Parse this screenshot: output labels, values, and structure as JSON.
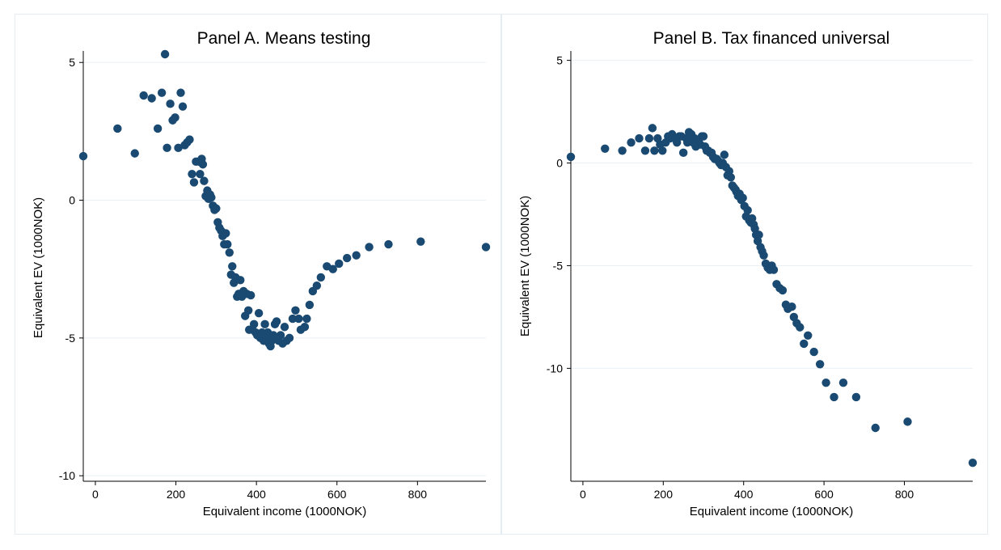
{
  "figure": {
    "background": "#ffffff",
    "border_color": "#e6edf2",
    "marker_color": "#1a4a72"
  },
  "chart_data": [
    {
      "type": "scatter",
      "title": "Panel A. Means testing",
      "xlabel": "Equivalent income (1000NOK)",
      "ylabel": "Equivalent EV (1000NOK)",
      "xlim": [
        -30,
        970
      ],
      "ylim": [
        -10.2,
        5.3
      ],
      "xticks": [
        0,
        200,
        400,
        600,
        800
      ],
      "yticks": [
        5,
        0,
        -5,
        -10
      ],
      "grid": true,
      "points": [
        [
          -30,
          1.6
        ],
        [
          55,
          2.6
        ],
        [
          98,
          1.7
        ],
        [
          120,
          3.8
        ],
        [
          140,
          3.7
        ],
        [
          155,
          2.6
        ],
        [
          165,
          3.9
        ],
        [
          173,
          5.3
        ],
        [
          178,
          1.9
        ],
        [
          186,
          3.5
        ],
        [
          192,
          2.9
        ],
        [
          198,
          3.0
        ],
        [
          206,
          1.9
        ],
        [
          212,
          3.9
        ],
        [
          217,
          3.4
        ],
        [
          222,
          2.0
        ],
        [
          228,
          2.1
        ],
        [
          234,
          2.2
        ],
        [
          240,
          0.95
        ],
        [
          245,
          0.65
        ],
        [
          250,
          1.4
        ],
        [
          257,
          1.4
        ],
        [
          260,
          0.95
        ],
        [
          264,
          1.5
        ],
        [
          267,
          1.3
        ],
        [
          270,
          0.7
        ],
        [
          274,
          0.15
        ],
        [
          278,
          0.35
        ],
        [
          281,
          0.05
        ],
        [
          285,
          0.2
        ],
        [
          288,
          0.1
        ],
        [
          292,
          -0.2
        ],
        [
          296,
          -0.35
        ],
        [
          300,
          -0.3
        ],
        [
          304,
          -0.8
        ],
        [
          308,
          -1.0
        ],
        [
          312,
          -1.1
        ],
        [
          316,
          -1.3
        ],
        [
          320,
          -1.6
        ],
        [
          324,
          -1.2
        ],
        [
          328,
          -1.6
        ],
        [
          333,
          -1.9
        ],
        [
          337,
          -2.7
        ],
        [
          340,
          -2.4
        ],
        [
          344,
          -3.0
        ],
        [
          348,
          -2.8
        ],
        [
          352,
          -3.5
        ],
        [
          356,
          -3.4
        ],
        [
          360,
          -2.9
        ],
        [
          364,
          -3.5
        ],
        [
          368,
          -3.3
        ],
        [
          372,
          -4.2
        ],
        [
          376,
          -3.4
        ],
        [
          380,
          -4.0
        ],
        [
          382,
          -4.7
        ],
        [
          386,
          -3.45
        ],
        [
          390,
          -4.7
        ],
        [
          394,
          -4.5
        ],
        [
          398,
          -4.8
        ],
        [
          402,
          -4.9
        ],
        [
          406,
          -4.1
        ],
        [
          410,
          -5.0
        ],
        [
          414,
          -4.8
        ],
        [
          418,
          -5.1
        ],
        [
          421,
          -4.5
        ],
        [
          425,
          -5.0
        ],
        [
          428,
          -4.8
        ],
        [
          431,
          -5.2
        ],
        [
          435,
          -5.3
        ],
        [
          438,
          -5.1
        ],
        [
          442,
          -4.9
        ],
        [
          446,
          -4.5
        ],
        [
          450,
          -4.4
        ],
        [
          455,
          -5.1
        ],
        [
          460,
          -4.9
        ],
        [
          465,
          -5.2
        ],
        [
          470,
          -4.6
        ],
        [
          475,
          -5.1
        ],
        [
          482,
          -5.0
        ],
        [
          490,
          -4.3
        ],
        [
          497,
          -4.0
        ],
        [
          505,
          -4.3
        ],
        [
          510,
          -4.7
        ],
        [
          520,
          -4.6
        ],
        [
          525,
          -4.3
        ],
        [
          532,
          -3.8
        ],
        [
          540,
          -3.3
        ],
        [
          550,
          -3.1
        ],
        [
          560,
          -2.8
        ],
        [
          575,
          -2.4
        ],
        [
          590,
          -2.5
        ],
        [
          605,
          -2.3
        ],
        [
          625,
          -2.1
        ],
        [
          648,
          -2.0
        ],
        [
          680,
          -1.7
        ],
        [
          728,
          -1.6
        ],
        [
          808,
          -1.5
        ],
        [
          970,
          -1.7
        ]
      ]
    },
    {
      "type": "scatter",
      "title": "Panel B. Tax financed universal",
      "xlabel": "Equivalent income (1000NOK)",
      "ylabel": "Equivalent EV (1000NOK)",
      "xlim": [
        -30,
        970
      ],
      "ylim": [
        -15.5,
        5.3
      ],
      "xticks": [
        0,
        200,
        400,
        600,
        800
      ],
      "yticks": [
        5,
        0,
        -5,
        -10
      ],
      "grid": true,
      "points": [
        [
          -30,
          0.3
        ],
        [
          55,
          0.7
        ],
        [
          98,
          0.6
        ],
        [
          120,
          1.0
        ],
        [
          140,
          1.2
        ],
        [
          155,
          0.6
        ],
        [
          165,
          1.2
        ],
        [
          173,
          1.7
        ],
        [
          178,
          0.6
        ],
        [
          186,
          1.2
        ],
        [
          192,
          0.9
        ],
        [
          198,
          0.6
        ],
        [
          206,
          1.0
        ],
        [
          212,
          1.3
        ],
        [
          217,
          1.2
        ],
        [
          222,
          1.4
        ],
        [
          228,
          1.2
        ],
        [
          234,
          1.0
        ],
        [
          240,
          1.3
        ],
        [
          245,
          1.3
        ],
        [
          250,
          0.5
        ],
        [
          257,
          1.2
        ],
        [
          260,
          1.0
        ],
        [
          264,
          1.5
        ],
        [
          267,
          1.3
        ],
        [
          270,
          1.4
        ],
        [
          274,
          1.0
        ],
        [
          278,
          1.2
        ],
        [
          281,
          0.8
        ],
        [
          285,
          1.0
        ],
        [
          288,
          1.1
        ],
        [
          292,
          0.9
        ],
        [
          296,
          1.3
        ],
        [
          300,
          1.3
        ],
        [
          304,
          0.8
        ],
        [
          308,
          0.6
        ],
        [
          312,
          0.6
        ],
        [
          316,
          0.5
        ],
        [
          320,
          0.5
        ],
        [
          324,
          0.3
        ],
        [
          328,
          0.2
        ],
        [
          333,
          0.2
        ],
        [
          337,
          0.1
        ],
        [
          340,
          0.0
        ],
        [
          344,
          -0.1
        ],
        [
          348,
          0.0
        ],
        [
          352,
          0.4
        ],
        [
          356,
          -0.2
        ],
        [
          360,
          -0.6
        ],
        [
          364,
          -0.4
        ],
        [
          368,
          -0.7
        ],
        [
          372,
          -1.1
        ],
        [
          376,
          -1.2
        ],
        [
          380,
          -1.3
        ],
        [
          382,
          -1.4
        ],
        [
          386,
          -1.6
        ],
        [
          390,
          -1.5
        ],
        [
          394,
          -1.8
        ],
        [
          398,
          -1.7
        ],
        [
          402,
          -2.1
        ],
        [
          406,
          -2.6
        ],
        [
          410,
          -2.3
        ],
        [
          414,
          -2.8
        ],
        [
          418,
          -2.9
        ],
        [
          421,
          -2.7
        ],
        [
          425,
          -3.0
        ],
        [
          428,
          -3.2
        ],
        [
          431,
          -3.5
        ],
        [
          435,
          -3.8
        ],
        [
          438,
          -3.5
        ],
        [
          442,
          -4.1
        ],
        [
          446,
          -4.3
        ],
        [
          450,
          -4.5
        ],
        [
          455,
          -4.9
        ],
        [
          460,
          -5.1
        ],
        [
          465,
          -5.2
        ],
        [
          470,
          -5.0
        ],
        [
          475,
          -5.2
        ],
        [
          482,
          -5.9
        ],
        [
          490,
          -6.1
        ],
        [
          497,
          -6.2
        ],
        [
          505,
          -6.9
        ],
        [
          510,
          -7.1
        ],
        [
          520,
          -7.0
        ],
        [
          525,
          -7.5
        ],
        [
          532,
          -7.8
        ],
        [
          540,
          -8.0
        ],
        [
          550,
          -8.8
        ],
        [
          560,
          -8.4
        ],
        [
          575,
          -9.2
        ],
        [
          590,
          -9.8
        ],
        [
          605,
          -10.7
        ],
        [
          625,
          -11.4
        ],
        [
          648,
          -10.7
        ],
        [
          680,
          -11.4
        ],
        [
          728,
          -12.9
        ],
        [
          808,
          -12.6
        ],
        [
          970,
          -14.6
        ]
      ]
    }
  ]
}
